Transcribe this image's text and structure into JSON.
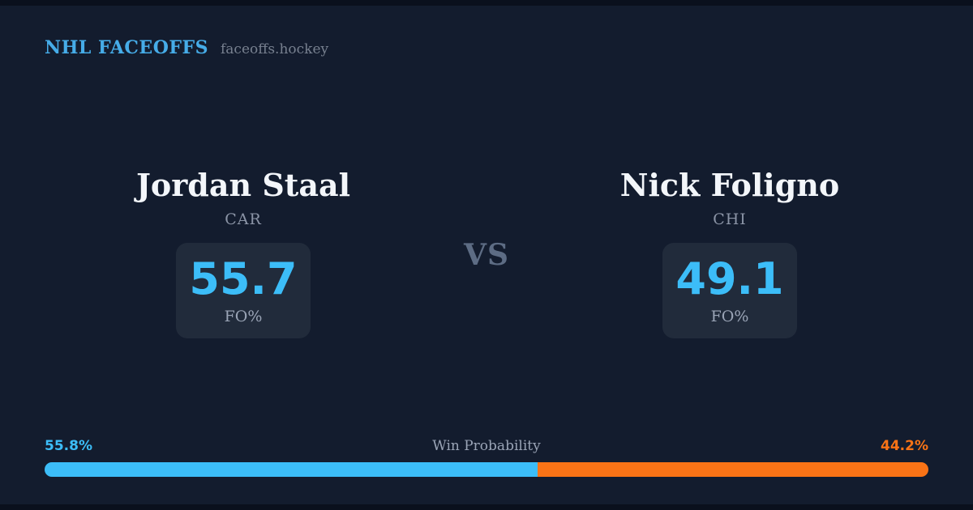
{
  "header": {
    "brand": "NHL FACEOFFS",
    "site": "faceoffs.hockey"
  },
  "matchup": {
    "vs_label": "VS",
    "players": [
      {
        "name": "Jordan Staal",
        "team": "CAR",
        "stat_value": "55.7",
        "stat_label": "FO%"
      },
      {
        "name": "Nick Foligno",
        "team": "CHI",
        "stat_value": "49.1",
        "stat_label": "FO%"
      }
    ]
  },
  "win_probability": {
    "label": "Win Probability",
    "left_pct_text": "55.8%",
    "right_pct_text": "44.2%",
    "left_value": 55.8,
    "right_value": 44.2
  },
  "colors": {
    "background": "#131c2e",
    "letterbox": "#0a101d",
    "card_background": "#212b3b",
    "accent_blue": "#3cbdf8",
    "brand_blue": "#46ace8",
    "accent_orange": "#f97316",
    "text_primary": "#f3f6fa",
    "text_muted": "#9aa4b6"
  }
}
